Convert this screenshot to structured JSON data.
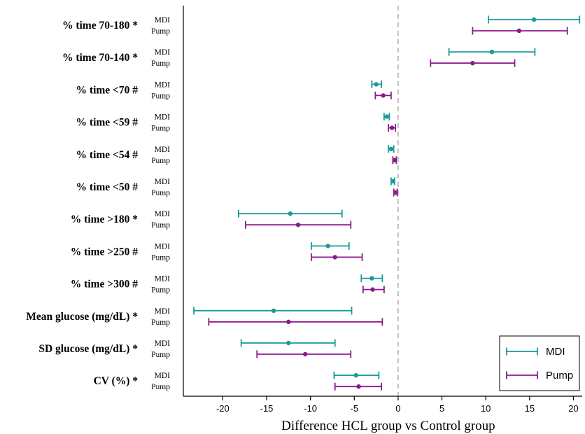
{
  "chart_data": {
    "type": "forest",
    "title": "",
    "xlabel": "Difference HCL group vs Control group",
    "ylabel": "",
    "xlim": [
      -24.5,
      21
    ],
    "xticks": [
      -20,
      -15,
      -10,
      -5,
      0,
      5,
      10,
      15,
      20
    ],
    "reference_line": {
      "x": 0,
      "style": "dashed"
    },
    "legend": {
      "placement": "bottom-right",
      "entries": [
        "MDI",
        "Pump"
      ]
    },
    "colors": {
      "MDI": "#1a9a9a",
      "Pump": "#8b1a8b"
    },
    "series_names": [
      "MDI",
      "Pump"
    ],
    "rows": [
      {
        "label": "% time 70-180 *",
        "MDI": {
          "est": 15.5,
          "lo": 10.3,
          "hi": 20.7
        },
        "Pump": {
          "est": 13.8,
          "lo": 8.5,
          "hi": 19.3
        }
      },
      {
        "label": "% time 70-140 *",
        "MDI": {
          "est": 10.7,
          "lo": 5.8,
          "hi": 15.6
        },
        "Pump": {
          "est": 8.5,
          "lo": 3.7,
          "hi": 13.3
        }
      },
      {
        "label": "% time <70 #",
        "MDI": {
          "est": -2.5,
          "lo": -3.0,
          "hi": -1.9
        },
        "Pump": {
          "est": -1.7,
          "lo": -2.6,
          "hi": -0.8
        }
      },
      {
        "label": "% time <59 #",
        "MDI": {
          "est": -1.3,
          "lo": -1.6,
          "hi": -1.0
        },
        "Pump": {
          "est": -0.7,
          "lo": -1.1,
          "hi": -0.3
        }
      },
      {
        "label": "% time <54 #",
        "MDI": {
          "est": -0.8,
          "lo": -1.1,
          "hi": -0.5
        },
        "Pump": {
          "est": -0.4,
          "lo": -0.6,
          "hi": -0.2
        }
      },
      {
        "label": "% time <50 #",
        "MDI": {
          "est": -0.6,
          "lo": -0.8,
          "hi": -0.4
        },
        "Pump": {
          "est": -0.3,
          "lo": -0.5,
          "hi": -0.1
        }
      },
      {
        "label": "% time >180 *",
        "MDI": {
          "est": -12.3,
          "lo": -18.2,
          "hi": -6.4
        },
        "Pump": {
          "est": -11.4,
          "lo": -17.4,
          "hi": -5.4
        }
      },
      {
        "label": "% time >250 #",
        "MDI": {
          "est": -8.0,
          "lo": -9.9,
          "hi": -5.6
        },
        "Pump": {
          "est": -7.2,
          "lo": -9.9,
          "hi": -4.1
        }
      },
      {
        "label": "% time >300 #",
        "MDI": {
          "est": -3.0,
          "lo": -4.2,
          "hi": -1.8
        },
        "Pump": {
          "est": -2.9,
          "lo": -4.0,
          "hi": -1.6
        }
      },
      {
        "label": "Mean glucose (mg/dL) *",
        "MDI": {
          "est": -14.2,
          "lo": -23.3,
          "hi": -5.3
        },
        "Pump": {
          "est": -12.5,
          "lo": -21.6,
          "hi": -1.8
        }
      },
      {
        "label": "SD glucose (mg/dL) *",
        "MDI": {
          "est": -12.5,
          "lo": -17.9,
          "hi": -7.2
        },
        "Pump": {
          "est": -10.6,
          "lo": -16.1,
          "hi": -5.4
        }
      },
      {
        "label": "CV (%) *",
        "MDI": {
          "est": -4.8,
          "lo": -7.3,
          "hi": -2.2
        },
        "Pump": {
          "est": -4.5,
          "lo": -7.2,
          "hi": -1.9
        }
      }
    ]
  }
}
